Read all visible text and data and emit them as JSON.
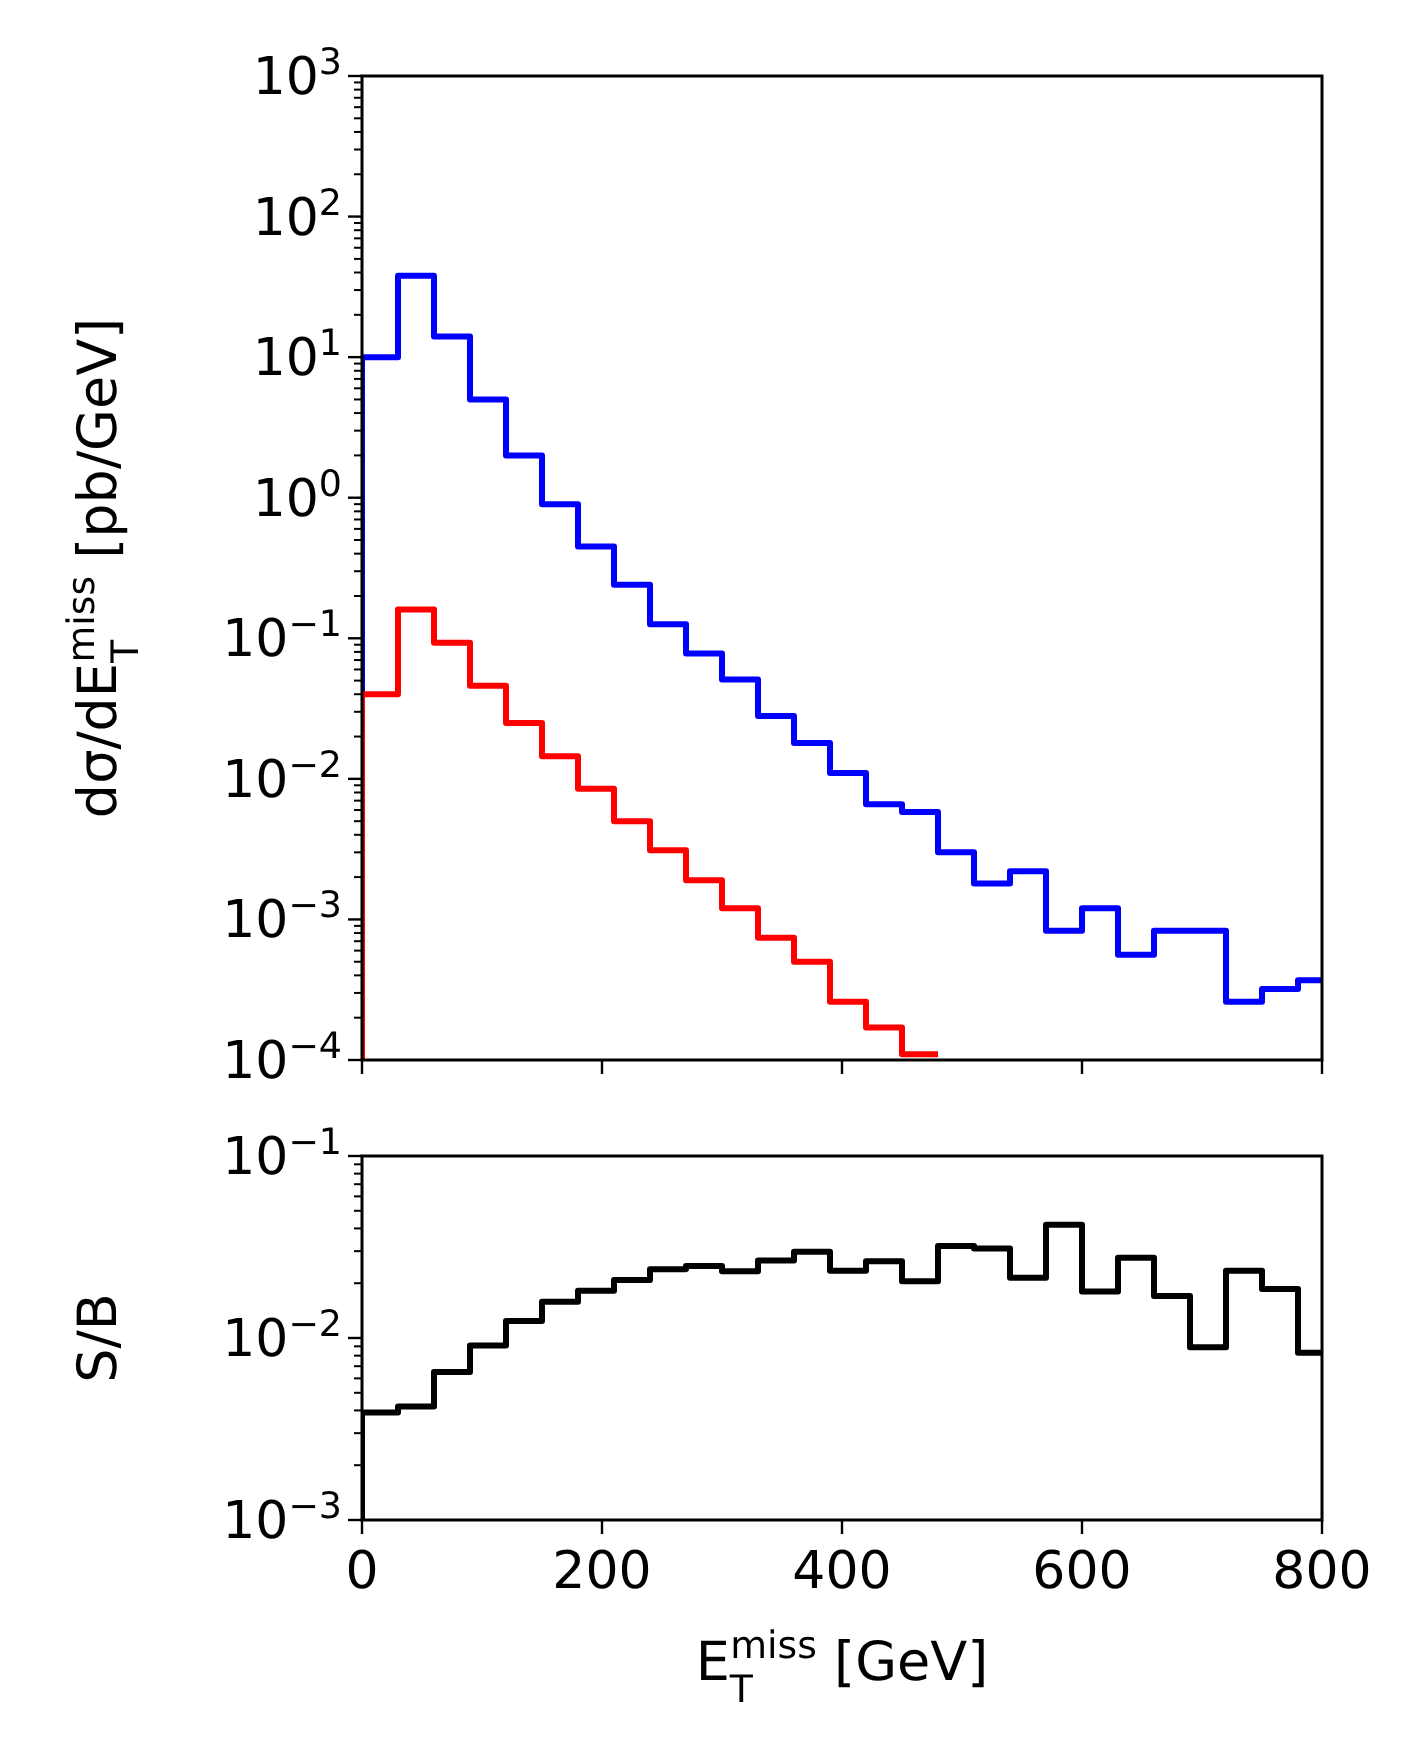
{
  "chart_data": [
    {
      "type": "histogram",
      "ylabel": "dσ/dE$_{T}$$^{miss}$ [pb/GeV]",
      "log": "y",
      "tick_labels": "y",
      "grid": false,
      "bins": [
        0,
        30,
        60,
        90,
        120,
        150,
        180,
        210,
        240,
        270,
        300,
        330,
        360,
        390,
        420,
        450,
        480,
        510,
        540,
        570,
        600,
        630,
        660,
        690,
        720,
        750,
        780,
        800
      ],
      "xlim": [
        0,
        800
      ],
      "xticks": [
        0,
        200,
        400,
        600,
        800
      ],
      "ylim": [
        0.0001,
        1000
      ],
      "yticks": [
        {
          "value": 0.0001,
          "label": "10$^{−4}$"
        },
        {
          "value": 0.001,
          "label": "10$^{−3}$"
        },
        {
          "value": 0.01,
          "label": "10$^{−2}$"
        },
        {
          "value": 0.1,
          "label": "10$^{−1}$"
        },
        {
          "value": 1,
          "label": "10$^{0}$"
        },
        {
          "value": 10,
          "label": "10$^{1}$"
        },
        {
          "value": 100,
          "label": "10$^{2}$"
        },
        {
          "value": 1000,
          "label": "10$^{3}$"
        }
      ],
      "series": [
        {
          "color": "#0000ff",
          "values": [
            10,
            38,
            14,
            5.0,
            2.0,
            0.9,
            0.45,
            0.24,
            0.126,
            0.078,
            0.051,
            0.028,
            0.018,
            0.011,
            0.0066,
            0.0058,
            0.003,
            0.0018,
            0.0022,
            0.00083,
            0.0012,
            0.00056,
            0.00083,
            0.00083,
            0.00026,
            0.00032,
            0.00037
          ]
        },
        {
          "color": "#ff0000",
          "bins": [
            0,
            30,
            60,
            90,
            120,
            150,
            180,
            210,
            240,
            270,
            300,
            330,
            360,
            390,
            420,
            450,
            480
          ],
          "values": [
            0.04,
            0.16,
            0.093,
            0.046,
            0.025,
            0.0145,
            0.0085,
            0.005,
            0.0031,
            0.0019,
            0.0012,
            0.00074,
            0.0005,
            0.00026,
            0.00017,
            0.00011
          ]
        }
      ]
    },
    {
      "type": "histogram",
      "xlabel": "E$_{T}$$^{miss}$ [GeV]",
      "ylabel": "S/B",
      "log": "y",
      "grid": false,
      "bins": [
        0,
        30,
        60,
        90,
        120,
        150,
        180,
        210,
        240,
        270,
        300,
        330,
        360,
        390,
        420,
        450,
        480,
        510,
        540,
        570,
        600,
        630,
        660,
        690,
        720,
        750,
        780,
        800
      ],
      "xlim": [
        0,
        800
      ],
      "xticks": [
        0,
        200,
        400,
        600,
        800
      ],
      "ylim": [
        0.001,
        0.1
      ],
      "yticks": [
        {
          "value": 0.001,
          "label": "10$^{−3}$"
        },
        {
          "value": 0.01,
          "label": "10$^{−2}$"
        },
        {
          "value": 0.1,
          "label": "10$^{−1}$"
        }
      ],
      "series": [
        {
          "color": "#000000",
          "values": [
            0.0039,
            0.0042,
            0.0065,
            0.0091,
            0.0124,
            0.0158,
            0.0182,
            0.0208,
            0.0239,
            0.0249,
            0.0233,
            0.0267,
            0.0298,
            0.0234,
            0.0264,
            0.0205,
            0.032,
            0.031,
            0.0214,
            0.0419,
            0.018,
            0.0276,
            0.017,
            0.0089,
            0.0234,
            0.0186,
            0.0083
          ]
        }
      ]
    }
  ]
}
